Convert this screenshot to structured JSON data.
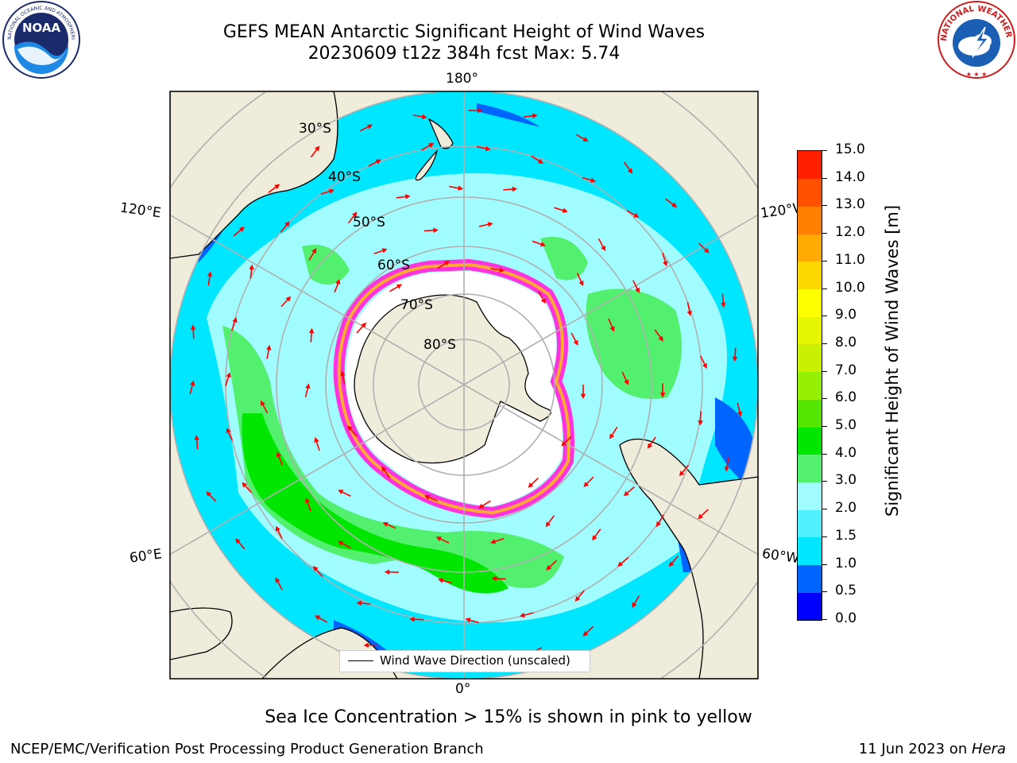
{
  "header": {
    "title_line1": "GEFS MEAN Antarctic Significant Height of Wind Waves",
    "title_line2": "20230609 t12z 384h fcst   Max: 5.74"
  },
  "map": {
    "longitude_labels": [
      "180°",
      "120°E",
      "120°W",
      "60°E",
      "60°W",
      "0°"
    ],
    "latitude_labels": [
      "30°S",
      "40°S",
      "50°S",
      "60°S",
      "70°S",
      "80°S"
    ],
    "legend_label": "Wind Wave Direction (unscaled)",
    "colors": {
      "land": "#efecdc",
      "coastline": "#000000",
      "grid": "#b0b0b0",
      "arrow": "#ff0000",
      "sea_ice_edge": [
        "#ff33dd",
        "#ffaa33",
        "#ffee44"
      ]
    }
  },
  "colorbar": {
    "title": "Significant Height of Wind Waves [m]",
    "tick_labels": [
      "15.0",
      "14.0",
      "13.0",
      "12.0",
      "11.0",
      "10.0",
      "9.0",
      "8.0",
      "7.0",
      "6.0",
      "5.0",
      "4.0",
      "3.0",
      "2.0",
      "1.5",
      "1.0",
      "0.5",
      "0.0"
    ],
    "colors_bottom_to_top": [
      "#0000ff",
      "#0064ff",
      "#00e6ff",
      "#50f0ff",
      "#a0fcff",
      "#52f06e",
      "#00e600",
      "#55e600",
      "#96ee00",
      "#c8f000",
      "#e6f500",
      "#ffff00",
      "#ffd700",
      "#ffaa00",
      "#ff8000",
      "#ff5000",
      "#ff2000"
    ]
  },
  "caption": "Sea Ice Concentration > 15% is shown in pink to yellow",
  "footer": {
    "left": "NCEP/EMC/Verification Post Processing Product Generation Branch",
    "right_prefix": "11 Jun 2023 on ",
    "right_host": "Hera"
  },
  "logos": {
    "noaa_text": "NOAA",
    "noaa_ring_text": "NATIONAL OCEANIC AND ATMOSPHERIC ADMINISTRATION · U.S. DEPARTMENT OF COMMERCE",
    "nws_ring_text": "NATIONAL WEATHER SERVICE"
  }
}
